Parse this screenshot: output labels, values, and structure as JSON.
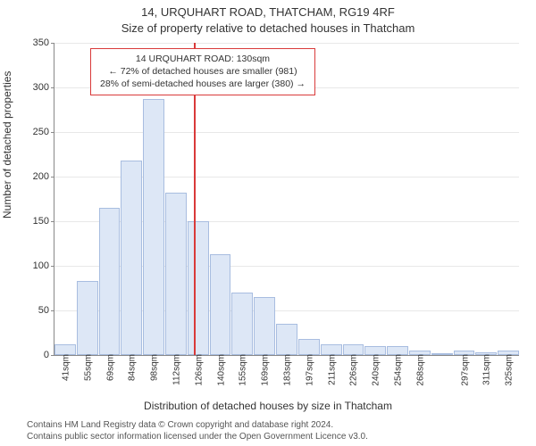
{
  "chart": {
    "type": "histogram",
    "title_main": "14, URQUHART ROAD, THATCHAM, RG19 4RF",
    "title_sub": "Size of property relative to detached houses in Thatcham",
    "y_label": "Number of detached properties",
    "x_label": "Distribution of detached houses by size in Thatcham",
    "title_fontsize": 13,
    "label_fontsize": 12,
    "tick_fontsize": 11,
    "xtick_fontsize": 10,
    "background_color": "#ffffff",
    "grid_color": "#e8e8e8",
    "axis_color": "#888888",
    "bar_fill": "#dde7f6",
    "bar_border": "#a8bde0",
    "marker_color": "#d93a3a",
    "text_color": "#333333",
    "ylim": [
      0,
      350
    ],
    "ytick_step": 50,
    "yticks": [
      0,
      50,
      100,
      150,
      200,
      250,
      300,
      350
    ],
    "categories": [
      "41sqm",
      "55sqm",
      "69sqm",
      "84sqm",
      "98sqm",
      "112sqm",
      "126sqm",
      "140sqm",
      "155sqm",
      "169sqm",
      "183sqm",
      "197sqm",
      "211sqm",
      "226sqm",
      "240sqm",
      "254sqm",
      "268sqm",
      "",
      "297sqm",
      "311sqm",
      "325sqm"
    ],
    "values": [
      12,
      83,
      165,
      218,
      287,
      182,
      150,
      113,
      70,
      65,
      35,
      18,
      12,
      12,
      10,
      10,
      5,
      2,
      5,
      3,
      5
    ],
    "marker_value_sqm": 130,
    "marker_bin_index": 6,
    "marker_offset_in_bin": 0.29,
    "annotation": {
      "line1": "14 URQUHART ROAD: 130sqm",
      "line2": "← 72% of detached houses are smaller (981)",
      "line3": "28% of semi-detached houses are larger (380) →",
      "fontsize": 10.5
    }
  },
  "attribution": {
    "line1": "Contains HM Land Registry data © Crown copyright and database right 2024.",
    "line2": "Contains public sector information licensed under the Open Government Licence v3.0.",
    "fontsize": 10,
    "color": "#555555"
  }
}
